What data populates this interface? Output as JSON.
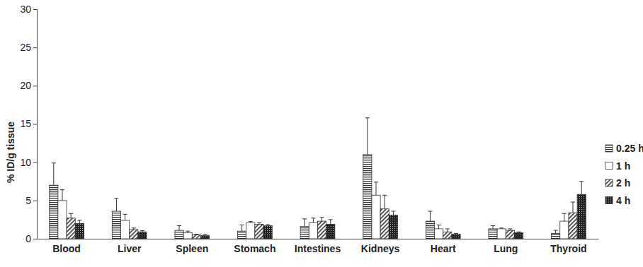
{
  "chart_data": {
    "type": "bar",
    "y_label": "% ID/g tissue",
    "categories": [
      "Blood",
      "Liver",
      "Spleen",
      "Stomach",
      "Intestines",
      "Kidneys",
      "Heart",
      "Lung",
      "Thyroid"
    ],
    "series": [
      {
        "name": "0.25 h",
        "values": [
          7.0,
          3.6,
          1.1,
          1.0,
          1.6,
          11.0,
          2.3,
          1.3,
          0.7
        ],
        "errors": [
          2.9,
          1.7,
          0.6,
          0.8,
          1.0,
          4.8,
          1.3,
          0.4,
          0.4
        ]
      },
      {
        "name": "1 h",
        "values": [
          5.0,
          2.4,
          0.8,
          2.1,
          2.1,
          5.7,
          1.3,
          1.3,
          2.3
        ],
        "errors": [
          1.4,
          0.8,
          0.2,
          0.15,
          0.6,
          1.7,
          0.5,
          0.1,
          1.0
        ]
      },
      {
        "name": "2 h",
        "values": [
          2.7,
          1.2,
          0.5,
          1.9,
          2.3,
          3.9,
          0.9,
          1.1,
          3.4
        ],
        "errors": [
          0.6,
          0.2,
          0.1,
          0.2,
          0.5,
          1.8,
          0.4,
          0.2,
          1.4
        ]
      },
      {
        "name": "4 h",
        "values": [
          2.0,
          0.9,
          0.4,
          1.7,
          1.9,
          3.1,
          0.6,
          0.8,
          5.8
        ],
        "errors": [
          0.4,
          0.15,
          0.2,
          0.15,
          0.6,
          0.5,
          0.1,
          0.1,
          1.7
        ]
      }
    ],
    "ylim": [
      0,
      30
    ],
    "yticks": [
      0,
      5,
      10,
      15,
      20,
      25,
      30
    ],
    "grid": false,
    "legend": "right"
  }
}
